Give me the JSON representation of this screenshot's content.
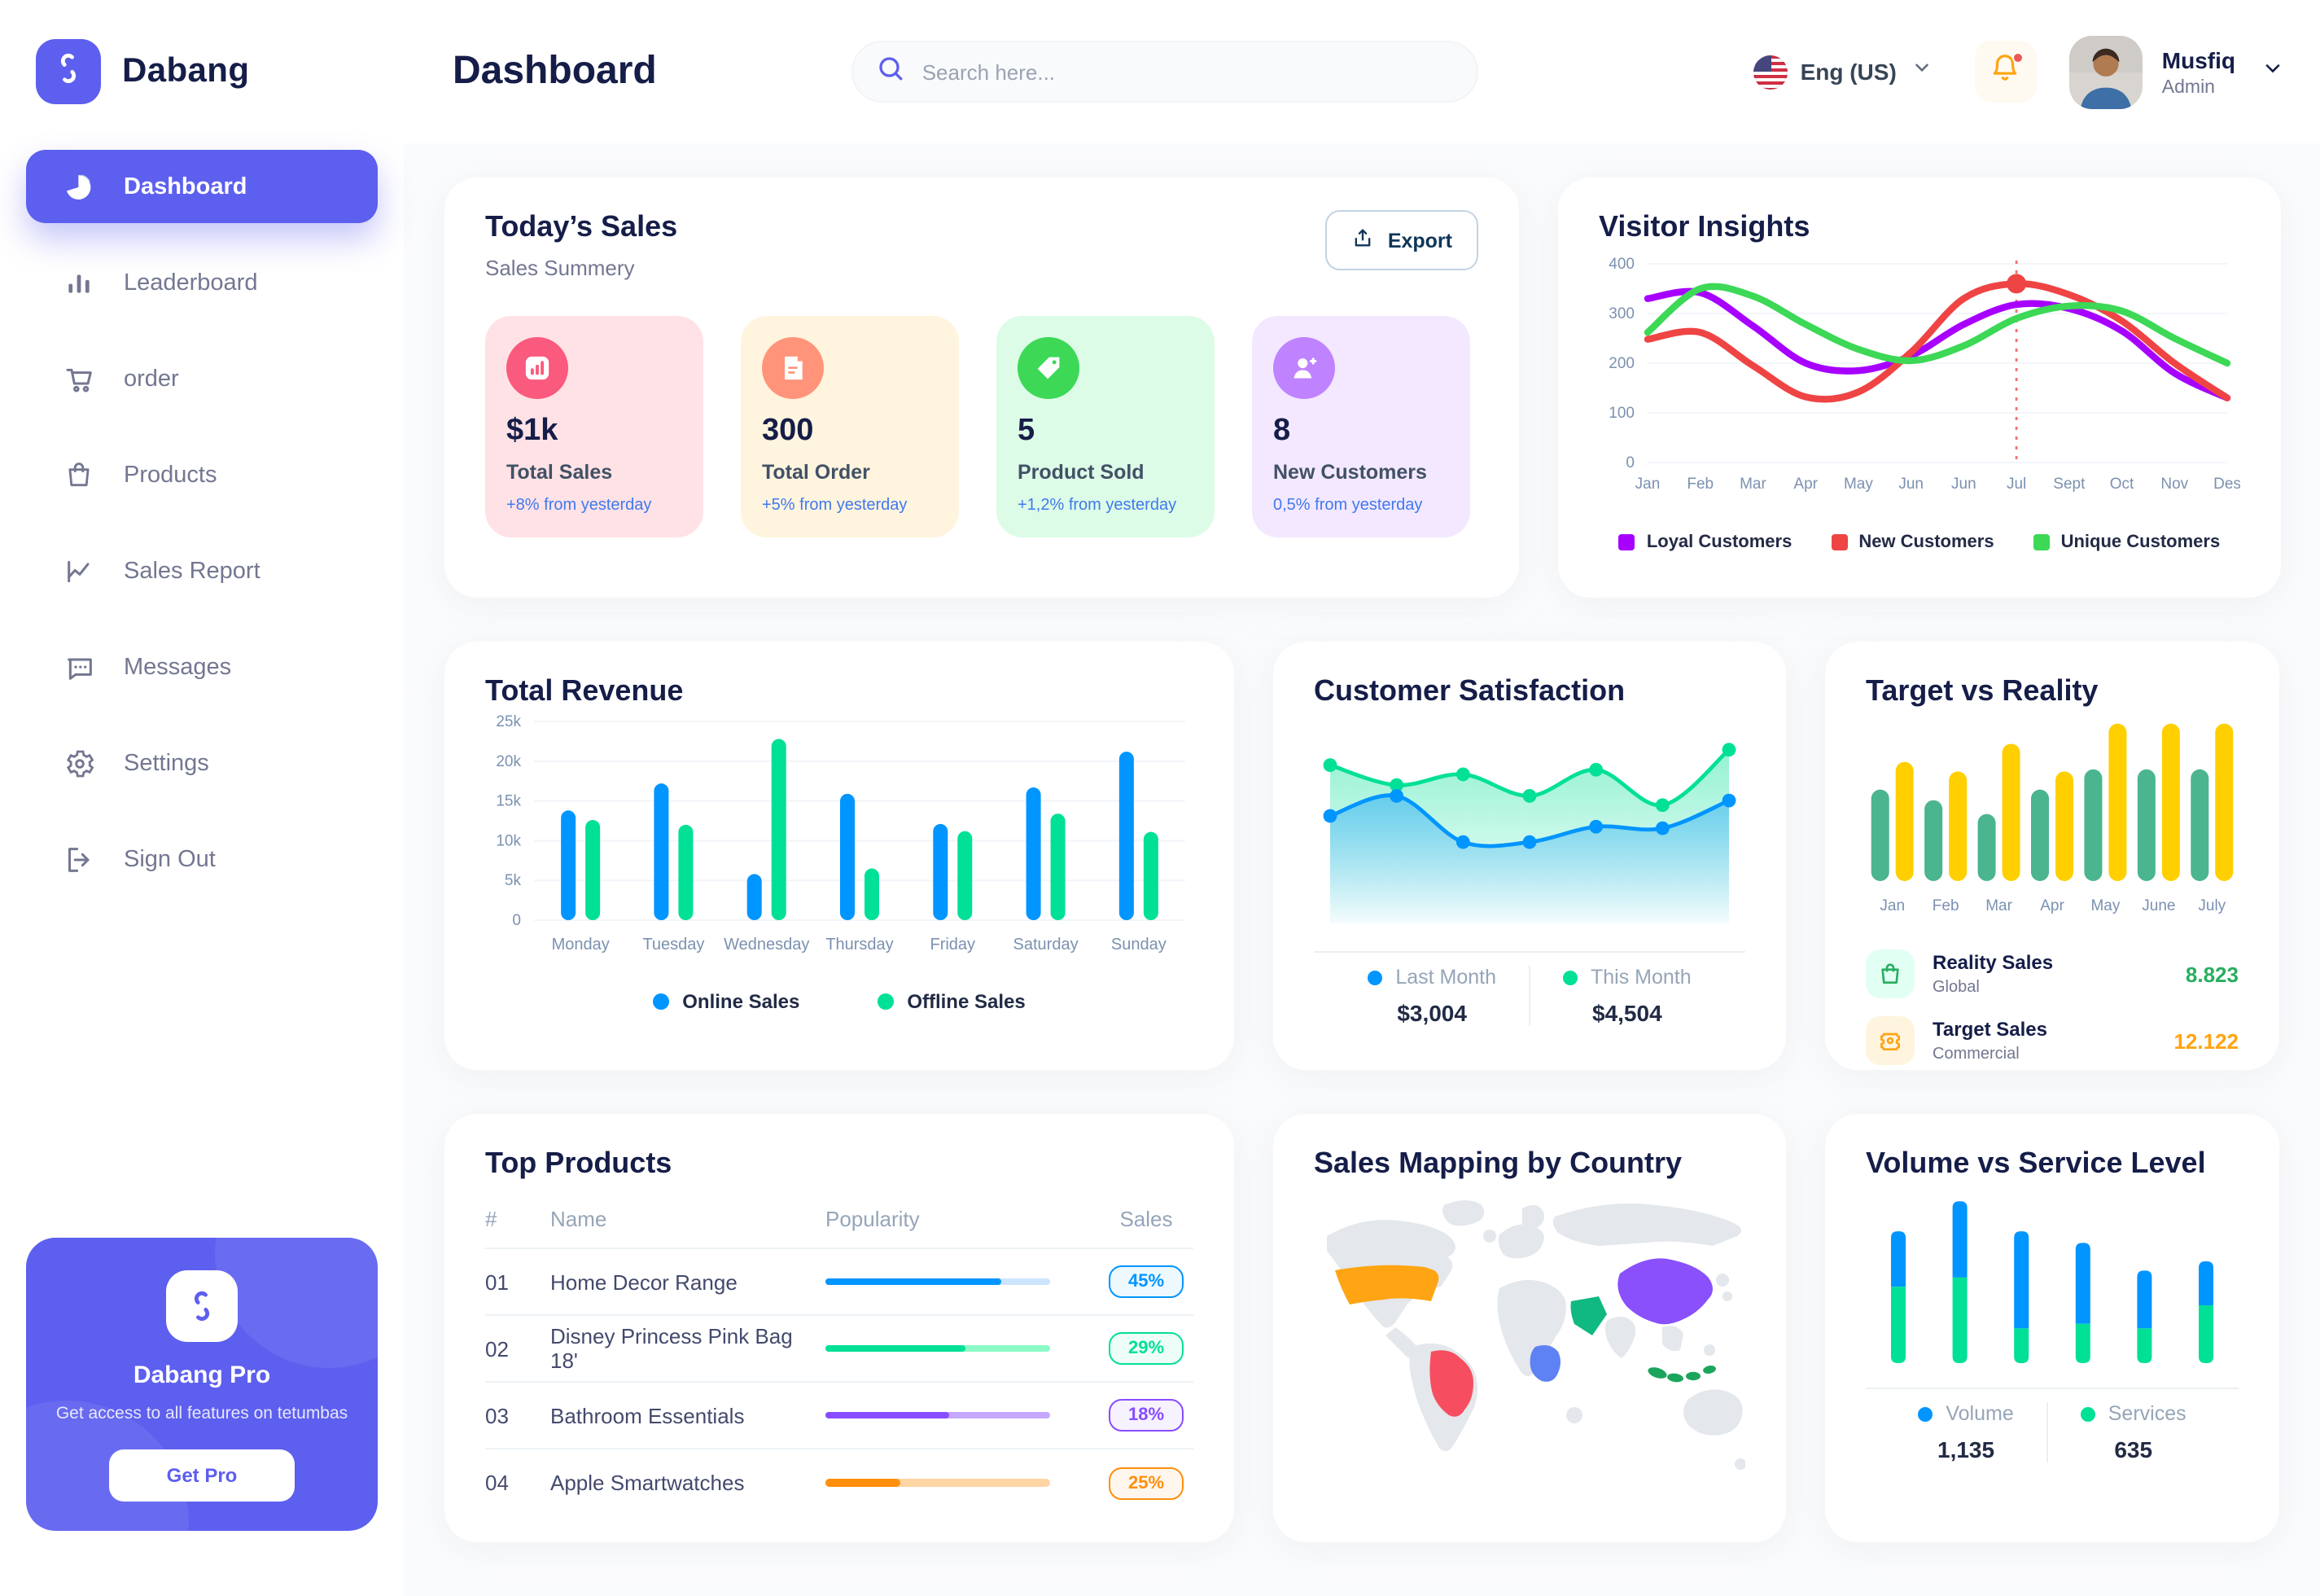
{
  "brand": {
    "name": "Dabang",
    "accent": "#5D5FEF"
  },
  "header": {
    "title": "Dashboard",
    "search_placeholder": "Search here...",
    "language": "Eng (US)",
    "user_name": "Musfiq",
    "user_role": "Admin"
  },
  "sidebar": {
    "items": [
      {
        "label": "Dashboard",
        "icon": "pie-chart-icon",
        "active": true
      },
      {
        "label": "Leaderboard",
        "icon": "bar-chart-icon",
        "active": false
      },
      {
        "label": "order",
        "icon": "cart-icon",
        "active": false
      },
      {
        "label": "Products",
        "icon": "bag-icon",
        "active": false
      },
      {
        "label": "Sales Report",
        "icon": "line-chart-icon",
        "active": false
      },
      {
        "label": "Messages",
        "icon": "message-icon",
        "active": false
      },
      {
        "label": "Settings",
        "icon": "gear-icon",
        "active": false
      },
      {
        "label": "Sign Out",
        "icon": "sign-out-icon",
        "active": false
      }
    ],
    "promo": {
      "title": "Dabang Pro",
      "subtitle": "Get access to all features on tetumbas",
      "button_label": "Get Pro"
    }
  },
  "today_sales": {
    "title": "Today’s Sales",
    "subtitle": "Sales Summery",
    "export_label": "Export",
    "cards": [
      {
        "value": "$1k",
        "label": "Total Sales",
        "delta": "+8% from yesterday",
        "bg": "#FFE2E5",
        "icon_bg": "#FA5A7D",
        "icon": "stat-chart-icon"
      },
      {
        "value": "300",
        "label": "Total Order",
        "delta": "+5% from yesterday",
        "bg": "#FFF4DE",
        "icon_bg": "#FF947A",
        "icon": "receipt-icon"
      },
      {
        "value": "5",
        "label": "Product Sold",
        "delta": "+1,2% from yesterday",
        "bg": "#DCFCE7",
        "icon_bg": "#3CD856",
        "icon": "tag-icon"
      },
      {
        "value": "8",
        "label": "New Customers",
        "delta": "0,5% from yesterday",
        "bg": "#F3E8FF",
        "icon_bg": "#BF83FF",
        "icon": "user-plus-icon"
      }
    ]
  },
  "chart_data": [
    {
      "id": "visitor_insights",
      "type": "line",
      "title": "Visitor Insights",
      "x_labels": [
        "Jan",
        "Feb",
        "Mar",
        "Apr",
        "May",
        "Jun",
        "Jun",
        "Jul",
        "Sept",
        "Oct",
        "Nov",
        "Des"
      ],
      "ylim": [
        0,
        400
      ],
      "yticks": [
        0,
        100,
        200,
        300,
        400
      ],
      "grid": true,
      "legend_position": "bottom",
      "series": [
        {
          "name": "Loyal Customers",
          "color": "#A700FF",
          "values": [
            330,
            342,
            275,
            200,
            185,
            215,
            278,
            318,
            310,
            265,
            180,
            130
          ]
        },
        {
          "name": "New Customers",
          "color": "#EF4444",
          "values": [
            248,
            262,
            195,
            132,
            142,
            222,
            330,
            360,
            338,
            285,
            200,
            130
          ]
        },
        {
          "name": "Unique Customers",
          "color": "#3CD856",
          "values": [
            262,
            350,
            335,
            278,
            228,
            205,
            235,
            290,
            315,
            305,
            250,
            200
          ]
        }
      ],
      "annotation": {
        "x_index": 7,
        "x_label": "Jul",
        "series": "New Customers",
        "value": 360
      }
    },
    {
      "id": "total_revenue",
      "type": "bar",
      "title": "Total Revenue",
      "categories": [
        "Monday",
        "Tuesday",
        "Wednesday",
        "Thursday",
        "Friday",
        "Saturday",
        "Sunday"
      ],
      "ylim": [
        0,
        25000
      ],
      "ytick_labels": [
        "0",
        "5k",
        "10k",
        "15k",
        "20k",
        "25k"
      ],
      "grid": true,
      "legend_position": "bottom",
      "series": [
        {
          "name": "Online Sales",
          "color": "#0095FF",
          "values": [
            13800,
            17200,
            5800,
            15900,
            12100,
            16700,
            21200
          ]
        },
        {
          "name": "Offline Sales",
          "color": "#00E096",
          "values": [
            12600,
            12000,
            22800,
            6500,
            11200,
            13400,
            11100
          ]
        }
      ]
    },
    {
      "id": "customer_satisfaction",
      "type": "area",
      "title": "Customer Satisfaction",
      "ylim": [
        0,
        110
      ],
      "grid": false,
      "legend_position": "bottom",
      "series": [
        {
          "name": "Last Month",
          "total_label": "$3,004",
          "color": "#0095FF",
          "values": [
            55,
            68,
            38,
            38,
            48,
            47,
            65
          ]
        },
        {
          "name": "This Month",
          "total_label": "$4,504",
          "color": "#00E096",
          "values": [
            88,
            75,
            82,
            68,
            85,
            62,
            98
          ]
        }
      ]
    },
    {
      "id": "target_vs_reality",
      "type": "bar",
      "title": "Target vs Reality",
      "categories": [
        "Jan",
        "Feb",
        "Mar",
        "Apr",
        "May",
        "June",
        "July"
      ],
      "ylim": [
        0,
        15
      ],
      "grid": false,
      "legend_position": "bottom",
      "series": [
        {
          "name": "Reality Sales",
          "subtitle": "Global",
          "value_label": "8.823",
          "color": "#4AB58E",
          "value_color": "#27AE60",
          "icon": "bag-icon",
          "icon_bg": "#E2FFF3",
          "values": [
            8.6,
            7.6,
            6.3,
            8.6,
            10.5,
            10.5,
            10.5
          ]
        },
        {
          "name": "Target Sales",
          "subtitle": "Commercial",
          "value_label": "12.122",
          "color": "#FFCF00",
          "value_color": "#FFA412",
          "icon": "ticket-icon",
          "icon_bg": "#FFF4DE",
          "values": [
            11.2,
            10.3,
            12.9,
            10.3,
            14.8,
            14.8,
            14.8
          ]
        }
      ]
    },
    {
      "id": "volume_vs_service",
      "type": "stacked-bar",
      "title": "Volume vs Service Level",
      "grid": false,
      "legend_position": "bottom",
      "series": [
        {
          "name": "Volume",
          "total_label": "1,135",
          "color": "#0095FF",
          "values": [
            24,
            33,
            42,
            35,
            25,
            19
          ]
        },
        {
          "name": "Services",
          "total_label": "635",
          "color": "#00E096",
          "values": [
            33,
            37,
            15,
            17,
            15,
            25
          ]
        }
      ]
    }
  ],
  "top_products": {
    "title": "Top Products",
    "columns": [
      "#",
      "Name",
      "Popularity",
      "Sales"
    ],
    "rows": [
      {
        "num": "01",
        "name": "Home Decor Range",
        "popularity": 78,
        "sales": "45%",
        "color": "#0095FF",
        "track": "#CDE4FF"
      },
      {
        "num": "02",
        "name": "Disney Princess Pink Bag 18'",
        "popularity": 62,
        "sales": "29%",
        "color": "#00E096",
        "track": "#8CFAC7"
      },
      {
        "num": "03",
        "name": "Bathroom Essentials",
        "popularity": 55,
        "sales": "18%",
        "color": "#884DFF",
        "track": "#C5A8FF"
      },
      {
        "num": "04",
        "name": "Apple Smartwatches",
        "popularity": 33,
        "sales": "25%",
        "color": "#FF8F0D",
        "track": "#FFD5A4"
      }
    ]
  },
  "sales_map": {
    "title": "Sales Mapping by Country",
    "land_color": "#E4E7EB",
    "countries": {
      "usa": {
        "name": "United States",
        "color": "#FFA412"
      },
      "brazil": {
        "name": "Brazil",
        "color": "#F64E60"
      },
      "china": {
        "name": "China",
        "color": "#8950FC"
      },
      "saudi_arabia": {
        "name": "Saudi Arabia",
        "color": "#10B981"
      },
      "dr_congo": {
        "name": "DR Congo",
        "color": "#5E81F4"
      },
      "indonesia": {
        "name": "Indonesia",
        "color": "#1BA55C"
      }
    }
  }
}
